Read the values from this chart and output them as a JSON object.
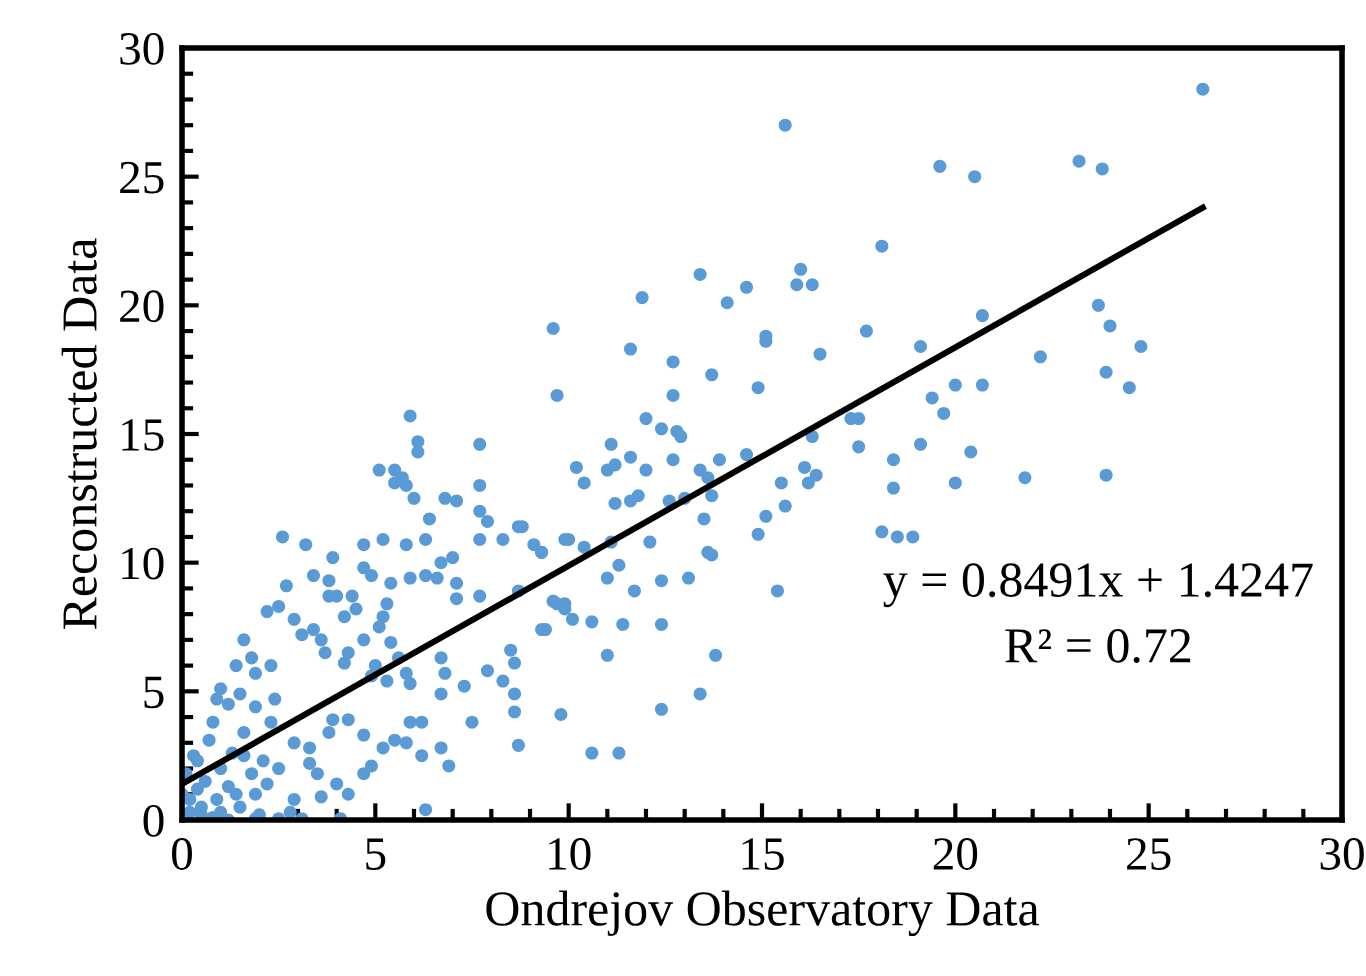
{
  "chart_data": {
    "type": "scatter",
    "xlabel": "Ondrejov Observatory Data",
    "ylabel": "Reconstructed Data",
    "xlim": [
      0,
      30
    ],
    "ylim": [
      0,
      30
    ],
    "xticks": [
      0,
      5,
      10,
      15,
      20,
      25,
      30
    ],
    "yticks": [
      0,
      5,
      10,
      15,
      20,
      25,
      30
    ],
    "grid": false,
    "annotations": [
      "y = 0.8491x + 1.4247",
      "R² = 0.72"
    ],
    "series": [
      {
        "color": "#5b9bd5",
        "marker": "circle",
        "x": [
          26.4,
          15.6,
          19.6,
          20.5,
          23.2,
          23.8,
          18.1,
          13.4,
          14.6,
          14.1,
          16.0,
          15.9,
          16.3,
          11.9,
          9.6,
          15.1,
          15.1,
          17.7,
          20.7,
          23.7,
          24.0,
          24.8,
          23.9,
          24.5,
          22.2,
          19.1,
          16.5,
          11.6,
          12.7,
          13.7,
          9.7,
          12.7,
          14.9,
          19.4,
          20.0,
          20.7,
          19.7,
          17.3,
          17.5,
          12.0,
          12.4,
          12.8,
          12.9,
          11.1,
          11.6,
          11.0,
          11.2,
          10.2,
          10.4,
          12.0,
          12.7,
          13.9,
          14.6,
          13.4,
          13.6,
          13.7,
          16.3,
          17.5,
          19.1,
          20.4,
          18.4,
          16.1,
          16.4,
          16.2,
          15.5,
          18.4,
          20.0,
          21.8,
          23.9,
          11.8,
          11.6,
          11.2,
          12.6,
          13.0,
          13.5,
          12.1,
          15.1,
          15.6,
          14.9,
          13.6,
          13.7,
          13.1,
          12.4,
          11.7,
          11.0,
          11.3,
          11.1,
          10.0,
          10.4,
          9.3,
          15.4,
          18.1,
          18.5,
          18.9,
          9.6,
          9.9,
          10.1,
          10.6,
          11.4,
          12.4,
          9.3,
          13.4,
          10.6,
          11.3,
          12.4,
          13.8,
          11.0,
          5.9,
          6.1,
          6.1,
          7.7,
          5.1,
          5.5,
          5.7,
          5.5,
          5.8,
          6.0,
          6.8,
          7.1,
          7.7,
          7.7,
          7.9,
          6.4,
          2.6,
          3.2,
          4.7,
          5.2,
          5.8,
          6.3,
          7.7,
          8.3,
          8.7,
          8.8,
          9.1,
          9.3,
          9.9,
          3.9,
          3.4,
          3.8,
          4.7,
          4.9,
          4.4,
          4.0,
          2.7,
          2.5,
          2.2,
          5.4,
          5.9,
          6.3,
          6.6,
          6.7,
          7.0,
          7.1,
          7.7,
          7.1,
          8.7,
          9.6,
          9.9,
          5.2,
          5.1,
          5.3,
          3.8,
          4.5,
          4.2,
          2.9,
          3.1,
          3.4,
          3.6,
          1.6,
          1.8,
          1.4,
          1.0,
          0.9,
          2.3,
          1.9,
          1.5,
          3.7,
          4.3,
          4.7,
          4.2,
          5.4,
          5.6,
          5.0,
          4.9,
          5.3,
          5.8,
          5.9,
          6.7,
          6.8,
          6.7,
          6.2,
          7.3,
          7.9,
          8.5,
          8.6,
          8.3,
          8.6,
          8.6,
          7.5,
          9.4,
          9.8,
          8.7,
          9.7,
          6.9,
          6.7,
          6.3,
          5.9,
          6.2,
          5.8,
          5.5,
          5.2,
          4.7,
          4.3,
          3.9,
          3.8,
          4.9,
          4.3,
          4.0,
          4.7,
          3.5,
          3.3,
          2.9,
          3.6,
          3.3,
          2.9,
          4.1,
          3.1,
          2.5,
          1.9,
          2.3,
          1.9,
          1.6,
          1.3,
          2.4,
          2.1,
          1.8,
          1.2,
          0.9,
          0.5,
          0.2,
          0.0,
          0.4,
          0.7,
          1.4,
          1.9,
          0.5,
          0.8,
          1.0,
          1.2,
          0.2,
          0.6,
          1.0,
          0.3,
          0.1,
          1.5,
          2.0,
          2.8,
          1.6,
          2.2,
          0.8,
          1.2,
          0.4,
          2.5
        ],
        "values": [
          28.4,
          27.0,
          25.4,
          25.0,
          25.6,
          25.3,
          22.3,
          21.2,
          20.7,
          20.1,
          21.4,
          20.8,
          20.8,
          20.3,
          19.1,
          18.8,
          18.6,
          19.0,
          19.6,
          20.0,
          19.2,
          18.4,
          17.4,
          16.8,
          18.0,
          18.4,
          18.1,
          18.3,
          17.8,
          17.3,
          16.5,
          16.5,
          16.8,
          16.4,
          16.9,
          16.9,
          15.8,
          15.6,
          15.6,
          15.6,
          15.2,
          15.1,
          14.9,
          14.6,
          14.1,
          13.6,
          13.8,
          13.7,
          13.1,
          13.6,
          14.0,
          14.0,
          14.2,
          13.6,
          13.3,
          12.6,
          14.9,
          14.5,
          14.6,
          14.3,
          14.0,
          13.7,
          13.4,
          13.1,
          13.1,
          12.9,
          13.1,
          13.3,
          13.4,
          12.6,
          12.4,
          12.3,
          12.4,
          12.5,
          11.7,
          10.8,
          11.8,
          12.2,
          11.1,
          10.4,
          10.3,
          9.4,
          9.3,
          8.9,
          9.4,
          9.9,
          10.8,
          10.9,
          10.6,
          10.4,
          8.9,
          11.2,
          11.0,
          11.0,
          8.5,
          8.4,
          7.8,
          7.7,
          7.6,
          7.6,
          7.4,
          4.9,
          2.6,
          2.6,
          4.3,
          6.4,
          6.4,
          15.7,
          14.7,
          14.3,
          14.6,
          13.6,
          13.6,
          13.3,
          13.1,
          13.0,
          12.5,
          12.5,
          12.4,
          13.0,
          12.0,
          11.6,
          11.7,
          11.0,
          10.7,
          10.7,
          10.9,
          10.7,
          10.9,
          10.9,
          10.9,
          11.4,
          11.4,
          10.7,
          10.4,
          10.9,
          10.2,
          9.5,
          9.3,
          9.8,
          9.5,
          8.7,
          8.7,
          9.1,
          8.3,
          8.1,
          9.2,
          9.4,
          9.5,
          9.4,
          10.0,
          10.2,
          9.2,
          8.7,
          8.6,
          8.9,
          8.5,
          8.2,
          7.9,
          7.5,
          8.4,
          8.7,
          8.2,
          7.9,
          7.8,
          7.2,
          7.4,
          7.0,
          7.0,
          6.3,
          6.0,
          5.1,
          4.7,
          6.0,
          5.7,
          4.9,
          6.5,
          6.5,
          7.0,
          6.1,
          6.9,
          6.3,
          6.0,
          5.6,
          5.4,
          5.7,
          5.3,
          6.3,
          5.7,
          4.9,
          3.8,
          5.2,
          5.8,
          6.6,
          6.1,
          5.4,
          4.9,
          4.2,
          3.8,
          7.4,
          4.1,
          2.9,
          8.4,
          2.1,
          2.8,
          0.4,
          3.8,
          2.5,
          3.0,
          3.1,
          2.8,
          3.3,
          3.9,
          3.9,
          3.4,
          2.1,
          1.0,
          1.4,
          1.8,
          1.8,
          2.2,
          0.8,
          0.9,
          2.8,
          3.0,
          0.05,
          0.05,
          0.05,
          0.05,
          3.8,
          4.4,
          3.4,
          2.6,
          4.7,
          2.3,
          1.8,
          1.3,
          0.8,
          0.5,
          0.3,
          1.0,
          2.3,
          3.1,
          1.0,
          1.0,
          0.2,
          0.1,
          0.3,
          0.0,
          0.8,
          1.5,
          2.0,
          2.5,
          1.8,
          0.5,
          0.2,
          0.3,
          2.5,
          1.4,
          3.8,
          4.5,
          1.2,
          2.0
        ]
      },
      {
        "type": "line",
        "color": "#000000",
        "x": [
          0,
          26.4
        ],
        "values": [
          1.4,
          23.8
        ]
      }
    ]
  }
}
